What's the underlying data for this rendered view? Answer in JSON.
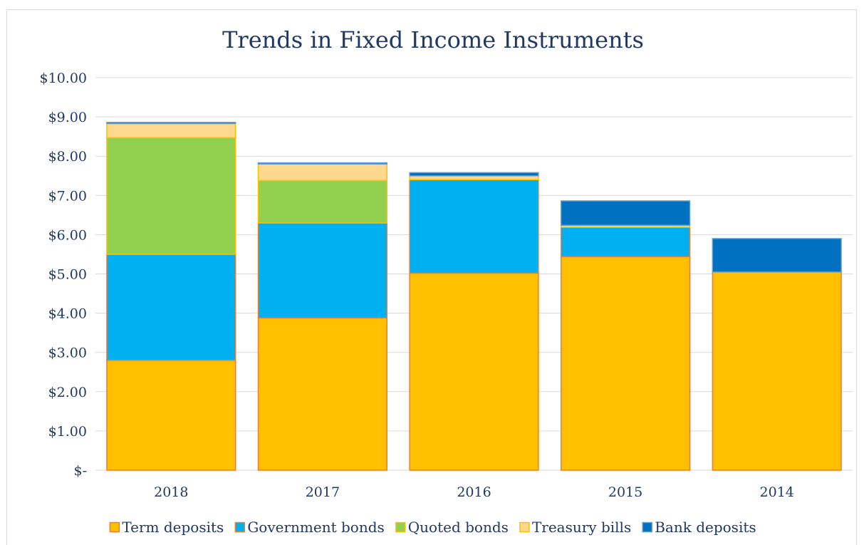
{
  "chart_data": {
    "type": "bar",
    "stacked": true,
    "title": "Trends in Fixed Income Instruments",
    "xlabel": "",
    "ylabel": "",
    "categories": [
      "2018",
      "2017",
      "2016",
      "2015",
      "2014"
    ],
    "ylim": [
      0,
      10
    ],
    "yticks": [
      {
        "value": 0,
        "label": "$-"
      },
      {
        "value": 1,
        "label": "$1.00"
      },
      {
        "value": 2,
        "label": "$2.00"
      },
      {
        "value": 3,
        "label": "$3.00"
      },
      {
        "value": 4,
        "label": "$4.00"
      },
      {
        "value": 5,
        "label": "$5.00"
      },
      {
        "value": 6,
        "label": "$6.00"
      },
      {
        "value": 7,
        "label": "$7.00"
      },
      {
        "value": 8,
        "label": "$8.00"
      },
      {
        "value": 9,
        "label": "$9.00"
      },
      {
        "value": 10,
        "label": "$10.00"
      }
    ],
    "grid": true,
    "legend_position": "bottom",
    "series": [
      {
        "name": "Term deposits",
        "color": "#ffc000",
        "edge": "#ed7d31",
        "values": [
          2.8,
          3.88,
          5.02,
          5.44,
          5.05
        ]
      },
      {
        "name": "Government bonds",
        "color": "#00b0f0",
        "edge": "#ed7d31",
        "values": [
          2.7,
          2.42,
          2.38,
          0.75,
          0.0
        ]
      },
      {
        "name": "Quoted bonds",
        "color": "#92d050",
        "edge": "#ffc000",
        "values": [
          2.97,
          1.08,
          0.0,
          0.0,
          0.0
        ]
      },
      {
        "name": "Treasury bills",
        "color": "#ffd88f",
        "edge": "#ffc000",
        "values": [
          0.36,
          0.42,
          0.1,
          0.05,
          0.0
        ]
      },
      {
        "name": "Bank deposits",
        "color": "#0070c0",
        "edge": "#5b9bd5",
        "values": [
          0.03,
          0.03,
          0.08,
          0.62,
          0.85
        ]
      }
    ]
  }
}
